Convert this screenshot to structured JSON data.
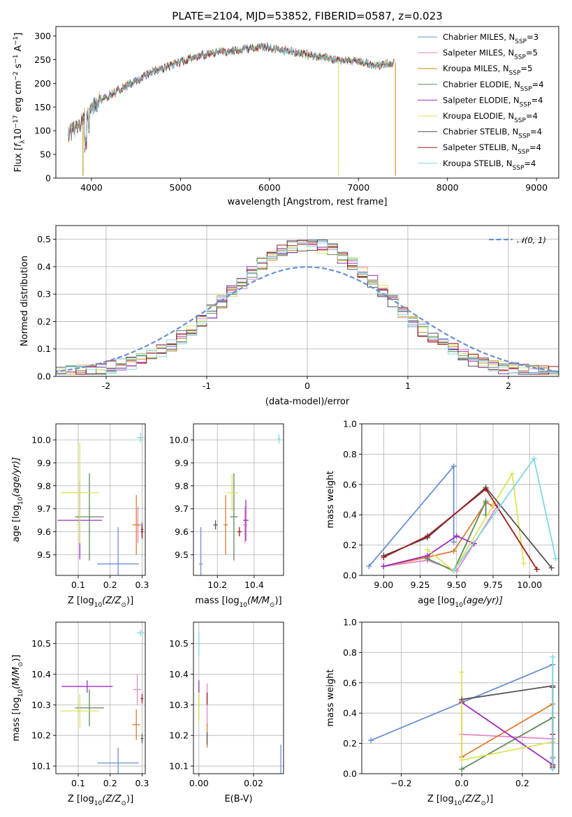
{
  "title": "PLATE=2104, MJD=53852, FIBERID=0587, z=0.023",
  "colors": {
    "Chabrier MILES": "#6a8fd6",
    "Salpeter MILES": "#e586c8",
    "Kroupa MILES": "#c88a14",
    "Chabrier ELODIE": "#5c8a5c",
    "Salpeter ELODIE": "#9a2fbf",
    "Kroupa ELODIE": "#dde35a",
    "Chabrier STELIB": "#555555",
    "Salpeter STELIB": "#a01818",
    "Kroupa STELIB": "#7fd9dd",
    "gauss": "#6a8fd6",
    "orange": "#e07a30"
  },
  "legend": [
    {
      "main": "Chabrier MILES, N",
      "sub": "SSP",
      "tail": "=3",
      "color": "#6a8fd6"
    },
    {
      "main": "Salpeter MILES, N",
      "sub": "SSP",
      "tail": "=5",
      "color": "#e586c8"
    },
    {
      "main": "Kroupa MILES, N",
      "sub": "SSP",
      "tail": "=5",
      "color": "#c88a14"
    },
    {
      "main": "Chabrier ELODIE, N",
      "sub": "SSP",
      "tail": "=4",
      "color": "#5c8a5c"
    },
    {
      "main": "Salpeter ELODIE, N",
      "sub": "SSP",
      "tail": "=4",
      "color": "#9a2fbf"
    },
    {
      "main": "Kroupa ELODIE, N",
      "sub": "SSP",
      "tail": "=4",
      "color": "#dde35a"
    },
    {
      "main": "Chabrier STELIB, N",
      "sub": "SSP",
      "tail": "=4",
      "color": "#555555"
    },
    {
      "main": "Salpeter STELIB, N",
      "sub": "SSP",
      "tail": "=4",
      "color": "#a01818"
    },
    {
      "main": "Kroupa STELIB, N",
      "sub": "SSP",
      "tail": "=4",
      "color": "#7fd9dd"
    }
  ],
  "chart_data": [
    {
      "id": "spectrum",
      "type": "line",
      "xlabel": "wavelength [Angstrom, rest frame]",
      "ylabel_parts": [
        "Flux [",
        "f",
        "λ",
        "10",
        "−17",
        " erg cm",
        "−2",
        " s",
        "−1",
        " A",
        "−1",
        "]"
      ],
      "xlim": [
        3600,
        9250
      ],
      "ylim": [
        0,
        320
      ],
      "xticks": [
        4000,
        5000,
        6000,
        7000,
        8000,
        9000
      ],
      "yticks": [
        0,
        50,
        100,
        150,
        200,
        250,
        300
      ],
      "grid": false,
      "legend_position": "upper right",
      "x_range": [
        3740,
        7400
      ],
      "continuum": [
        [
          3740,
          95
        ],
        [
          3850,
          110
        ],
        [
          3950,
          135
        ],
        [
          4000,
          150
        ],
        [
          4100,
          165
        ],
        [
          4300,
          185
        ],
        [
          4500,
          205
        ],
        [
          4700,
          225
        ],
        [
          5000,
          245
        ],
        [
          5200,
          258
        ],
        [
          5400,
          265
        ],
        [
          5700,
          272
        ],
        [
          5900,
          277
        ],
        [
          6100,
          272
        ],
        [
          6300,
          265
        ],
        [
          6500,
          258
        ],
        [
          6700,
          252
        ],
        [
          6900,
          248
        ],
        [
          7050,
          245
        ],
        [
          7200,
          238
        ],
        [
          7400,
          243
        ]
      ],
      "dips": [
        {
          "x": 3905,
          "y": 5,
          "color": "#c88a14"
        },
        {
          "x": 6775,
          "y": 5,
          "color": "#dde35a"
        },
        {
          "x": 7415,
          "y": 5,
          "color": "#c88a14"
        }
      ]
    },
    {
      "id": "residuals",
      "type": "histogram",
      "xlabel": "(data-model)/error",
      "ylabel": "Normed distribution",
      "xlim": [
        -2.5,
        2.5
      ],
      "ylim": [
        0,
        0.55
      ],
      "xticks": [
        -2,
        -1,
        0,
        1,
        2
      ],
      "yticks": [
        0.0,
        0.1,
        0.2,
        0.3,
        0.4,
        0.5
      ],
      "grid": true,
      "legend_position": "upper right",
      "legend_label": "𝒩(0, 1)",
      "reference_curve": "normal(0,1)"
    },
    {
      "id": "age-vs-Z",
      "type": "errorbar",
      "xlabel_parts": [
        "Z [log",
        "10",
        "(Z/Z",
        "⊙",
        ")]"
      ],
      "ylabel_parts": [
        "age  [log",
        "10",
        "(age/yr)]"
      ],
      "xlim": [
        0.03,
        0.31
      ],
      "ylim": [
        9.41,
        10.07
      ],
      "xticks": [
        0.1,
        0.2,
        0.3
      ],
      "yticks": [
        9.5,
        9.6,
        9.7,
        9.8,
        9.9,
        10.0
      ],
      "points": [
        {
          "x": 0.225,
          "y": 9.46,
          "xe": 0.065,
          "ye": 0.16,
          "color": "#6a8fd6"
        },
        {
          "x": 0.287,
          "y": 9.63,
          "xe": 0.01,
          "ye": 0.08,
          "color": "#e586c8"
        },
        {
          "x": 0.282,
          "y": 9.63,
          "xe": 0.012,
          "ye": 0.13,
          "color": "#e07a30"
        },
        {
          "x": 0.135,
          "y": 9.665,
          "xe": 0.045,
          "ye": 0.19,
          "color": "#5c8a5c"
        },
        {
          "x": 0.105,
          "y": 9.65,
          "xe": 0.07,
          "ye": 0.17,
          "color": "#9a2fbf"
        },
        {
          "x": 0.105,
          "y": 9.77,
          "xe": 0.06,
          "ye": 0.22,
          "color": "#dde35a"
        },
        {
          "x": 0.3,
          "y": 9.61,
          "xe": 0.004,
          "ye": 0.03,
          "color": "#555555"
        },
        {
          "x": 0.3,
          "y": 9.6,
          "xe": 0.004,
          "ye": 0.03,
          "color": "#a01818"
        },
        {
          "x": 0.295,
          "y": 10.01,
          "xe": 0.012,
          "ye": 0.02,
          "color": "#7fd9dd"
        }
      ]
    },
    {
      "id": "age-vs-mass",
      "type": "errorbar",
      "xlabel_parts": [
        "mass [log",
        "10",
        "(M/M",
        "⊙",
        ")]"
      ],
      "xlim": [
        10.07,
        10.56
      ],
      "ylim": [
        9.41,
        10.07
      ],
      "xticks": [
        10.2,
        10.4
      ],
      "yticks": [
        9.5,
        9.6,
        9.7,
        9.8,
        9.9,
        10.0
      ],
      "points": [
        {
          "x": 10.11,
          "y": 9.46,
          "xe": 0.01,
          "ye": 0.16,
          "color": "#6a8fd6"
        },
        {
          "x": 10.35,
          "y": 9.63,
          "xe": 0.012,
          "ye": 0.08,
          "color": "#e586c8"
        },
        {
          "x": 10.245,
          "y": 9.63,
          "xe": 0.012,
          "ye": 0.13,
          "color": "#e07a30"
        },
        {
          "x": 10.29,
          "y": 9.665,
          "xe": 0.02,
          "ye": 0.19,
          "color": "#5c8a5c"
        },
        {
          "x": 10.355,
          "y": 9.65,
          "xe": 0.015,
          "ye": 0.09,
          "color": "#9a2fbf"
        },
        {
          "x": 10.28,
          "y": 9.77,
          "xe": 0.03,
          "ye": 0.08,
          "color": "#dde35a"
        },
        {
          "x": 10.19,
          "y": 9.63,
          "xe": 0.012,
          "ye": 0.02,
          "color": "#555555"
        },
        {
          "x": 10.32,
          "y": 9.6,
          "xe": 0.012,
          "ye": 0.02,
          "color": "#a01818"
        },
        {
          "x": 10.535,
          "y": 10.005,
          "xe": 0.006,
          "ye": 0.02,
          "color": "#7fd9dd"
        }
      ]
    },
    {
      "id": "weight-vs-age",
      "type": "line",
      "xlabel_parts": [
        "age  [log",
        "10",
        "(age/yr)]"
      ],
      "ylabel": "mass weight",
      "xlim": [
        8.85,
        10.2
      ],
      "ylim": [
        0,
        1
      ],
      "xticks": [
        9.0,
        9.25,
        9.5,
        9.75,
        10.0
      ],
      "xtick_labels": [
        "9.00",
        "9.25",
        "9.50",
        "9.75",
        "10.00"
      ],
      "yticks": [
        0.0,
        0.2,
        0.4,
        0.6,
        0.8,
        1.0
      ],
      "grid": true,
      "series": [
        {
          "color": "#6a8fd6",
          "x": [
            8.9,
            9.48,
            9.48
          ],
          "y": [
            0.06,
            0.72,
            0.22
          ]
        },
        {
          "color": "#e586c8",
          "x": [
            9.0,
            9.3,
            9.5,
            9.62,
            9.78
          ],
          "y": [
            0.06,
            0.1,
            0.03,
            0.21,
            0.46
          ]
        },
        {
          "color": "#e07a30",
          "x": [
            9.0,
            9.3,
            9.48,
            9.7,
            9.75
          ],
          "y": [
            0.06,
            0.12,
            0.16,
            0.48,
            0.46
          ]
        },
        {
          "color": "#5c8a5c",
          "x": [
            9.3,
            9.48,
            9.7,
            9.7
          ],
          "y": [
            0.11,
            0.03,
            0.49,
            0.4
          ]
        },
        {
          "color": "#9a2fbf",
          "x": [
            9.0,
            9.3,
            9.5,
            9.62
          ],
          "y": [
            0.06,
            0.13,
            0.26,
            0.21
          ]
        },
        {
          "color": "#dde35a",
          "x": [
            9.3,
            9.48,
            9.88,
            9.96
          ],
          "y": [
            0.17,
            0.03,
            0.67,
            0.08
          ]
        },
        {
          "color": "#555555",
          "x": [
            9.0,
            9.3,
            9.7,
            10.15
          ],
          "y": [
            0.13,
            0.25,
            0.58,
            0.05
          ]
        },
        {
          "color": "#a01818",
          "x": [
            9.0,
            9.3,
            9.7,
            10.05
          ],
          "y": [
            0.12,
            0.26,
            0.57,
            0.04
          ]
        },
        {
          "color": "#7fd9dd",
          "x": [
            9.48,
            10.03,
            10.18
          ],
          "y": [
            0.03,
            0.77,
            0.11
          ]
        }
      ]
    },
    {
      "id": "mass-vs-Z",
      "type": "errorbar",
      "xlabel_parts": [
        "Z [log",
        "10",
        "(Z/Z",
        "⊙",
        ")]"
      ],
      "ylabel_parts": [
        "mass [log",
        "10",
        "(M/M",
        "⊙",
        ")]"
      ],
      "xlim": [
        0.03,
        0.31
      ],
      "ylim": [
        10.075,
        10.57
      ],
      "xticks": [
        0.1,
        0.2,
        0.3
      ],
      "yticks": [
        10.1,
        10.2,
        10.3,
        10.4,
        10.5
      ],
      "points": [
        {
          "x": 0.225,
          "y": 10.11,
          "xe": 0.065,
          "ye": 0.05,
          "color": "#6a8fd6"
        },
        {
          "x": 0.285,
          "y": 10.35,
          "xe": 0.012,
          "ye": 0.05,
          "color": "#e586c8"
        },
        {
          "x": 0.282,
          "y": 10.235,
          "xe": 0.012,
          "ye": 0.05,
          "color": "#e07a30"
        },
        {
          "x": 0.135,
          "y": 10.29,
          "xe": 0.045,
          "ye": 0.06,
          "color": "#5c8a5c"
        },
        {
          "x": 0.128,
          "y": 10.36,
          "xe": 0.08,
          "ye": 0.02,
          "color": "#9a2fbf"
        },
        {
          "x": 0.105,
          "y": 10.28,
          "xe": 0.06,
          "ye": 0.055,
          "color": "#dde35a"
        },
        {
          "x": 0.3,
          "y": 10.19,
          "xe": 0.004,
          "ye": 0.015,
          "color": "#555555"
        },
        {
          "x": 0.3,
          "y": 10.32,
          "xe": 0.004,
          "ye": 0.015,
          "color": "#a01818"
        },
        {
          "x": 0.295,
          "y": 10.535,
          "xe": 0.012,
          "ye": 0.01,
          "color": "#7fd9dd"
        }
      ]
    },
    {
      "id": "mass-vs-EBV",
      "type": "errorbar",
      "xlabel": "E(B-V)",
      "xlim": [
        -0.002,
        0.031
      ],
      "ylim": [
        10.075,
        10.57
      ],
      "xticks": [
        0.0,
        0.02
      ],
      "xtick_labels": [
        "0.00",
        "0.02"
      ],
      "yticks": [
        10.1,
        10.2,
        10.3,
        10.4,
        10.5
      ],
      "points": [
        {
          "x": 0.03,
          "y": 10.12,
          "xe": 0,
          "ye": 0.05,
          "color": "#6a8fd6"
        },
        {
          "x": 0.003,
          "y": 10.3,
          "xe": 0,
          "ye": 0.07,
          "color": "#e586c8"
        },
        {
          "x": 0.003,
          "y": 10.2,
          "xe": 0,
          "ye": 0.04,
          "color": "#e07a30"
        },
        {
          "x": 0.0,
          "y": 10.3,
          "xe": 0,
          "ye": 0.05,
          "color": "#5c8a5c"
        },
        {
          "x": 0.0,
          "y": 10.34,
          "xe": 0,
          "ye": 0.04,
          "color": "#9a2fbf"
        },
        {
          "x": 0.0,
          "y": 10.29,
          "xe": 0,
          "ye": 0.05,
          "color": "#dde35a"
        },
        {
          "x": 0.003,
          "y": 10.19,
          "xe": 0,
          "ye": 0.02,
          "color": "#555555"
        },
        {
          "x": 0.003,
          "y": 10.32,
          "xe": 0,
          "ye": 0.02,
          "color": "#a01818"
        },
        {
          "x": 0.0,
          "y": 10.5,
          "xe": 0,
          "ye": 0.04,
          "color": "#7fd9dd"
        }
      ]
    },
    {
      "id": "weight-vs-Z",
      "type": "line",
      "xlabel_parts": [
        "Z [log",
        "10",
        "(Z/Z",
        "⊙",
        ")]"
      ],
      "ylabel": "mass weight",
      "xlim": [
        -0.33,
        0.32
      ],
      "ylim": [
        0,
        1
      ],
      "xticks": [
        -0.2,
        0.0,
        0.2
      ],
      "xtick_labels": [
        "−0.2",
        "0.0",
        "0.2"
      ],
      "yticks": [
        0.0,
        0.2,
        0.4,
        0.6,
        0.8,
        1.0
      ],
      "grid": true,
      "series": [
        {
          "color": "#6a8fd6",
          "x": [
            -0.3,
            0.3,
            0.3
          ],
          "y": [
            0.22,
            0.72,
            0.06
          ]
        },
        {
          "color": "#e586c8",
          "x": [
            0.0,
            0.3,
            0.3
          ],
          "y": [
            0.26,
            0.23,
            0.1
          ]
        },
        {
          "color": "#e07a30",
          "x": [
            0.0,
            0.0,
            0.3
          ],
          "y": [
            0.48,
            0.11,
            0.46
          ]
        },
        {
          "color": "#5c8a5c",
          "x": [
            0.0,
            0.3,
            0.3
          ],
          "y": [
            0.03,
            0.37,
            0.11
          ]
        },
        {
          "color": "#9a2fbf",
          "x": [
            0.0,
            0.3,
            0.3
          ],
          "y": [
            0.47,
            0.06,
            0.21
          ]
        },
        {
          "color": "#dde35a",
          "x": [
            0.0,
            0.0,
            0.3
          ],
          "y": [
            0.67,
            0.09,
            0.21
          ]
        },
        {
          "color": "#555555",
          "x": [
            0.0,
            0.3,
            0.3
          ],
          "y": [
            0.49,
            0.58,
            0.05
          ]
        },
        {
          "color": "#a01818",
          "x": [
            0.3,
            0.3,
            0.3
          ],
          "y": [
            0.57,
            0.26,
            0.04
          ]
        },
        {
          "color": "#7fd9dd",
          "x": [
            0.3,
            0.3,
            0.3
          ],
          "y": [
            0.77,
            0.03,
            0.11
          ]
        }
      ]
    }
  ]
}
